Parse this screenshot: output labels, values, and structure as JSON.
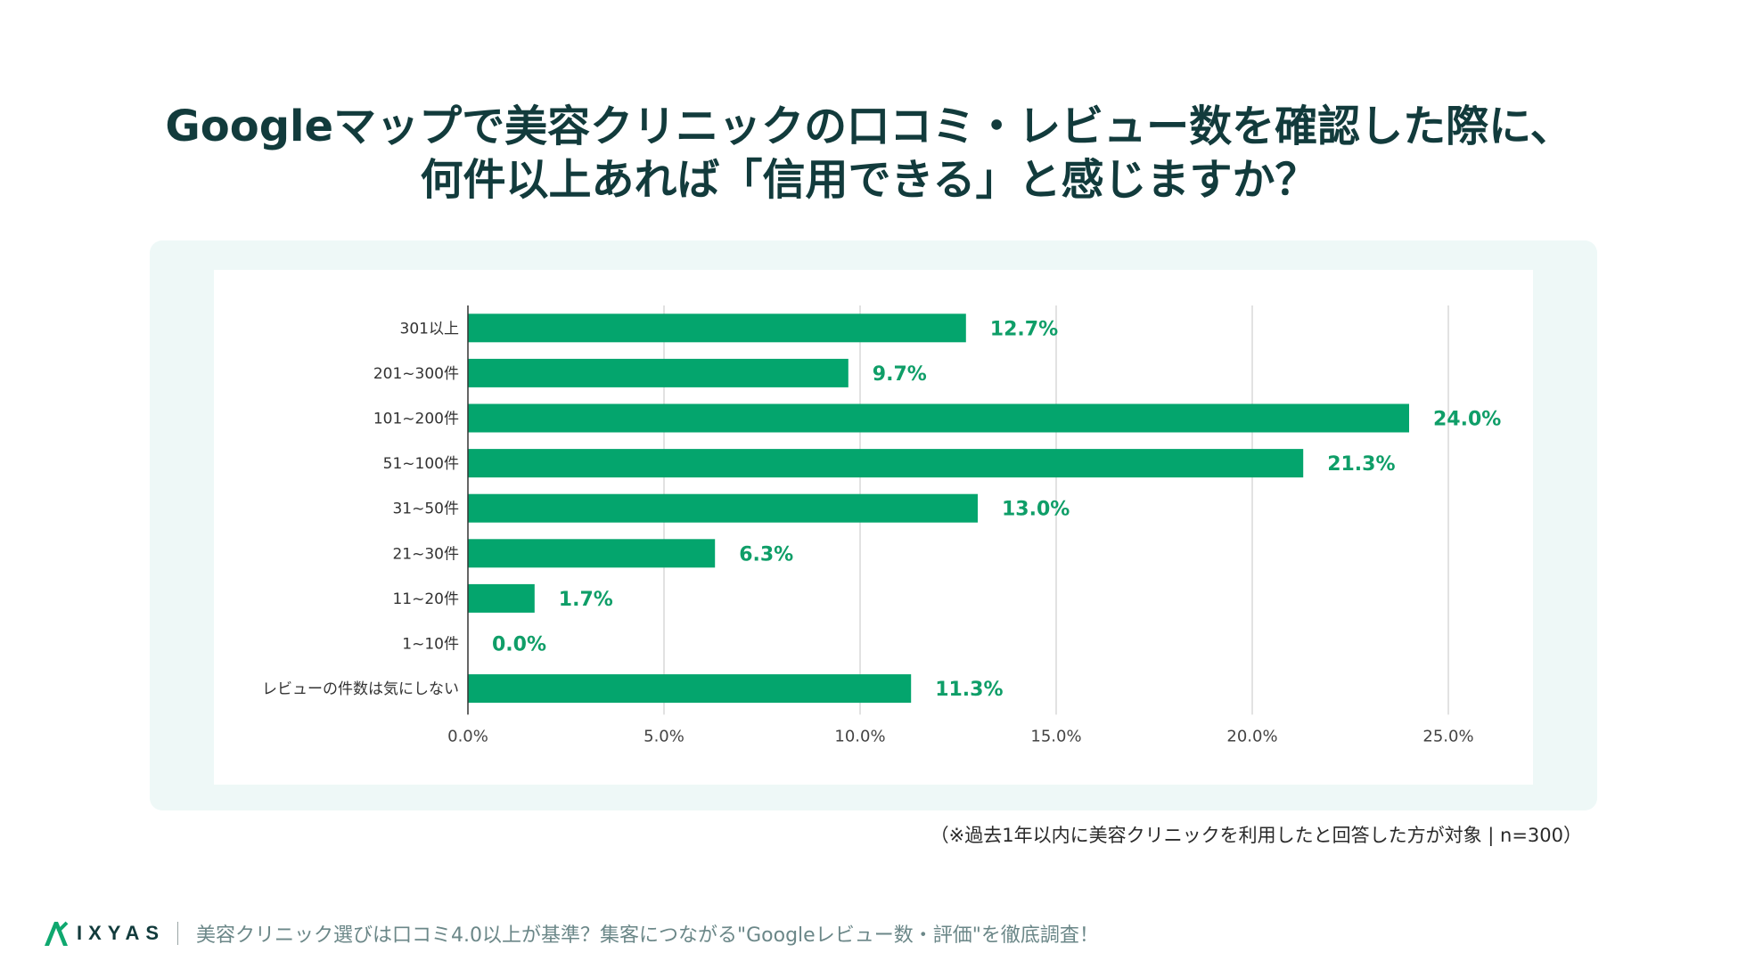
{
  "title": {
    "line1": "Googleマップで美容クリニックの口コミ・レビュー数を確認した際に、",
    "line2": "何件以上あれば「信用できる」と感じますか？"
  },
  "note": "（※過去1年以内に美容クリニックを利用したと回答した方が対象 | n=300）",
  "footer": {
    "logo_text": "IXYAS",
    "caption": "美容クリニック選びは口コミ4.0以上が基準？集客につながる\"Googleレビュー数・評価\"を徹底調査！"
  },
  "colors": {
    "bar": "#04a56d",
    "value_label": "#0f9e68",
    "title": "#123b3c",
    "panel_bg": "#eef8f7",
    "grid": "#d9d9d9"
  },
  "chart_data": {
    "type": "bar",
    "orientation": "horizontal",
    "categories": [
      "301以上",
      "201~300件",
      "101~200件",
      "51~100件",
      "31~50件",
      "21~30件",
      "11~20件",
      "1~10件",
      "レビューの件数は気にしない"
    ],
    "values": [
      12.7,
      9.7,
      24.0,
      21.3,
      13.0,
      6.3,
      1.7,
      0.0,
      11.3
    ],
    "value_labels": [
      "12.7%",
      "9.7%",
      "24.0%",
      "21.3%",
      "13.0%",
      "6.3%",
      "1.7%",
      "0.0%",
      "11.3%"
    ],
    "x_ticks": [
      "0.0%",
      "5.0%",
      "10.0%",
      "15.0%",
      "20.0%",
      "25.0%"
    ],
    "xlim": [
      0,
      25
    ],
    "grid": true,
    "legend": "none"
  }
}
